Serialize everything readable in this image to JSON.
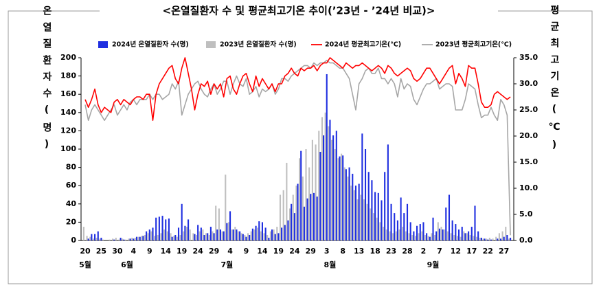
{
  "chart_data": {
    "type": "combo",
    "title": "<온열질환자 수 및 평균최고기온 추이(’23년 - ’24년 비교)>",
    "y_label": "온열질환자수(명)",
    "y2_label": "평균최고기온(℃)",
    "categories": [
      "20",
      null,
      null,
      null,
      null,
      "25",
      null,
      null,
      null,
      null,
      "30",
      null,
      null,
      null,
      null,
      "4",
      null,
      null,
      null,
      null,
      "9",
      null,
      null,
      null,
      null,
      "14",
      null,
      null,
      null,
      null,
      "19",
      null,
      null,
      null,
      null,
      "24",
      null,
      null,
      null,
      null,
      "29",
      null,
      null,
      null,
      null,
      "4",
      null,
      null,
      null,
      null,
      "9",
      null,
      null,
      null,
      null,
      "14",
      null,
      null,
      null,
      null,
      "19",
      null,
      null,
      null,
      null,
      "24",
      null,
      null,
      null,
      null,
      "29",
      null,
      null,
      null,
      null,
      "3",
      null,
      null,
      null,
      null,
      "8",
      null,
      null,
      null,
      null,
      "13",
      null,
      null,
      null,
      null,
      "18",
      null,
      null,
      null,
      null,
      "23",
      null,
      null,
      null,
      null,
      "28",
      null,
      null,
      null,
      null,
      "2",
      null,
      null,
      null,
      null,
      "7",
      null,
      null,
      null,
      null,
      "12",
      null,
      null,
      null,
      null,
      "17",
      null,
      null,
      null,
      null,
      "22",
      null,
      null,
      null,
      null,
      "27",
      null,
      null
    ],
    "month_labels": [
      "5월",
      null,
      null,
      null,
      null,
      null,
      null,
      null,
      null,
      null,
      null,
      null,
      null,
      "6월",
      null,
      null,
      null,
      null,
      null,
      null,
      null,
      null,
      null,
      null,
      null,
      null,
      null,
      null,
      null,
      null,
      null,
      null,
      null,
      null,
      null,
      null,
      null,
      null,
      null,
      null,
      null,
      null,
      null,
      null,
      "7월",
      null,
      null,
      null,
      null,
      null,
      null,
      null,
      null,
      null,
      null,
      null,
      null,
      null,
      null,
      null,
      null,
      null,
      null,
      null,
      null,
      null,
      null,
      null,
      null,
      null,
      null,
      null,
      null,
      null,
      null,
      null,
      "8월",
      null,
      null,
      null,
      null,
      null,
      null,
      null,
      null,
      null,
      null,
      null,
      null,
      null,
      null,
      null,
      null,
      null,
      null,
      null,
      null,
      null,
      null,
      null,
      null,
      null,
      null,
      null,
      null,
      null,
      null,
      null,
      "9월",
      null,
      null,
      null,
      null,
      null,
      null,
      null,
      null,
      null,
      null,
      null,
      null,
      null,
      null,
      null,
      null,
      null,
      null,
      null,
      null,
      null,
      null,
      null,
      null
    ],
    "series": [
      {
        "name": "2024년 온열질환자 수(명)",
        "type": "bar",
        "color": "#1f2fe0",
        "values": [
          0,
          2,
          7,
          7,
          10,
          3,
          0,
          0,
          0,
          1,
          0,
          3,
          1,
          0,
          2,
          2,
          4,
          4,
          5,
          10,
          12,
          14,
          25,
          26,
          27,
          23,
          24,
          4,
          6,
          14,
          40,
          16,
          23,
          0,
          7,
          17,
          14,
          6,
          8,
          15,
          8,
          12,
          12,
          10,
          19,
          32,
          12,
          12,
          10,
          7,
          4,
          6,
          13,
          16,
          21,
          20,
          14,
          3,
          12,
          7,
          8,
          14,
          17,
          22,
          40,
          30,
          62,
          98,
          37,
          46,
          51,
          52,
          48,
          97,
          115,
          182,
          132,
          115,
          120,
          92,
          93,
          78,
          80,
          73,
          60,
          62,
          117,
          100,
          75,
          66,
          53,
          52,
          44,
          75,
          105,
          40,
          30,
          22,
          47,
          30,
          40,
          20,
          10,
          16,
          18,
          20,
          8,
          4,
          25,
          10,
          13,
          12,
          36,
          50,
          22,
          18,
          12,
          15,
          8,
          10,
          15,
          38,
          10,
          3,
          2,
          1,
          1,
          0,
          2,
          2,
          4,
          6,
          3
        ]
      },
      {
        "name": "2023년 온열질환자 수(명)",
        "type": "bar",
        "color": "#bfbfbf",
        "values": [
          15,
          5,
          4,
          2,
          3,
          2,
          1,
          0,
          1,
          2,
          3,
          1,
          2,
          1,
          2,
          3,
          3,
          4,
          5,
          6,
          8,
          10,
          5,
          6,
          8,
          12,
          10,
          8,
          5,
          4,
          6,
          10,
          15,
          12,
          8,
          6,
          10,
          12,
          8,
          6,
          10,
          38,
          35,
          10,
          72,
          20,
          12,
          15,
          10,
          8,
          6,
          8,
          10,
          12,
          14,
          10,
          8,
          6,
          10,
          12,
          15,
          50,
          55,
          85,
          35,
          50,
          60,
          90,
          70,
          100,
          80,
          110,
          105,
          120,
          135,
          140,
          125,
          110,
          100,
          90,
          95,
          80,
          70,
          60,
          55,
          45,
          50,
          45,
          40,
          35,
          30,
          25,
          20,
          15,
          12,
          10,
          8,
          10,
          12,
          15,
          10,
          8,
          6,
          5,
          8,
          10,
          6,
          5,
          8,
          6,
          20,
          15,
          12,
          10,
          8,
          6,
          5,
          4,
          10,
          8,
          6,
          5,
          4,
          3,
          2,
          2,
          3,
          2,
          4,
          8,
          10,
          15,
          2
        ]
      },
      {
        "name": "2024년 평균최고기온(℃)",
        "type": "line",
        "axis": "y2",
        "color": "#ff0000",
        "values": [
          27,
          25.5,
          27,
          29,
          26,
          24.5,
          25.5,
          25,
          24.5,
          26.5,
          27,
          26,
          27,
          26.5,
          26,
          27,
          27.5,
          27.5,
          27,
          28,
          28,
          23,
          28,
          30,
          31,
          32,
          33,
          33.5,
          31,
          30,
          33,
          35,
          32,
          29,
          25,
          28,
          30,
          29.5,
          30.5,
          28,
          30,
          29,
          30,
          27.5,
          31,
          31.5,
          29,
          28,
          30,
          31.5,
          32,
          30,
          28.5,
          31.5,
          29.5,
          31,
          30,
          29,
          30,
          28.5,
          30,
          30,
          31.5,
          32,
          33,
          32,
          31.5,
          33,
          32.5,
          33,
          33,
          33.5,
          32.5,
          33.5,
          34,
          34,
          35,
          34.5,
          34,
          33.5,
          33,
          34,
          33.5,
          33,
          33.5,
          33.5,
          34,
          33.5,
          33,
          32.5,
          33,
          33.5,
          33,
          32,
          33.5,
          33,
          32,
          31.5,
          32,
          32.5,
          33,
          32.5,
          31,
          30.5,
          31,
          32,
          33,
          33,
          32,
          31,
          30,
          31,
          32,
          33,
          33.5,
          30,
          32,
          31,
          29.5,
          33.5,
          33,
          33,
          30,
          26.5,
          25.5,
          25.5,
          26,
          28,
          28.5,
          28,
          27.5,
          27,
          27.5
        ]
      },
      {
        "name": "2023년 평균최고기온(℃)",
        "type": "line",
        "axis": "y2",
        "color": "#a6a6a6",
        "values": [
          26,
          23,
          25,
          26,
          25,
          24,
          23,
          24,
          25,
          26,
          24,
          25,
          26,
          25,
          26.5,
          27,
          26,
          27,
          27,
          27,
          28,
          27,
          28,
          28,
          27,
          27.5,
          28,
          30,
          29,
          30.5,
          24,
          26,
          28,
          29,
          30,
          30.5,
          29,
          28,
          27.5,
          29,
          30,
          28,
          29,
          30.5,
          30.5,
          28,
          30,
          31.5,
          30,
          29.5,
          31,
          28,
          28.5,
          29.5,
          27.5,
          29,
          28.5,
          29,
          30,
          28,
          29,
          31,
          31,
          30.5,
          31.5,
          32,
          32.5,
          33,
          33.5,
          33.5,
          33,
          34,
          33.5,
          34,
          34,
          34.5,
          34,
          34,
          33.5,
          33,
          33,
          32,
          31,
          28,
          25,
          30,
          31,
          32.5,
          33,
          32,
          32,
          33,
          31,
          31,
          30,
          31,
          30,
          27.5,
          31,
          29,
          30,
          29.5,
          27,
          26,
          27.5,
          29,
          30,
          30,
          30.5,
          31,
          29,
          29.5,
          30,
          30,
          29.5,
          25,
          25,
          25,
          27,
          30,
          29.5,
          29,
          26,
          23.5,
          24,
          24,
          25.5,
          24,
          23,
          27,
          26,
          24,
          1
        ]
      }
    ],
    "ylim": [
      0,
      200
    ],
    "yticks": [
      0,
      20,
      40,
      60,
      80,
      100,
      120,
      140,
      160,
      180,
      200
    ],
    "y2lim": [
      0,
      35
    ],
    "y2ticks": [
      {
        "value": 0,
        "label": "0.0"
      },
      {
        "value": 5,
        "label": "5.0"
      },
      {
        "value": 10,
        "label": "10.0"
      },
      {
        "value": 15,
        "label": "15.0"
      },
      {
        "value": 20,
        "label": "20.0"
      },
      {
        "value": 25,
        "label": "25.0"
      },
      {
        "value": 30,
        "label": "30.0"
      },
      {
        "value": 35,
        "label": "35.0"
      }
    ],
    "grid": false,
    "legend": "top"
  }
}
